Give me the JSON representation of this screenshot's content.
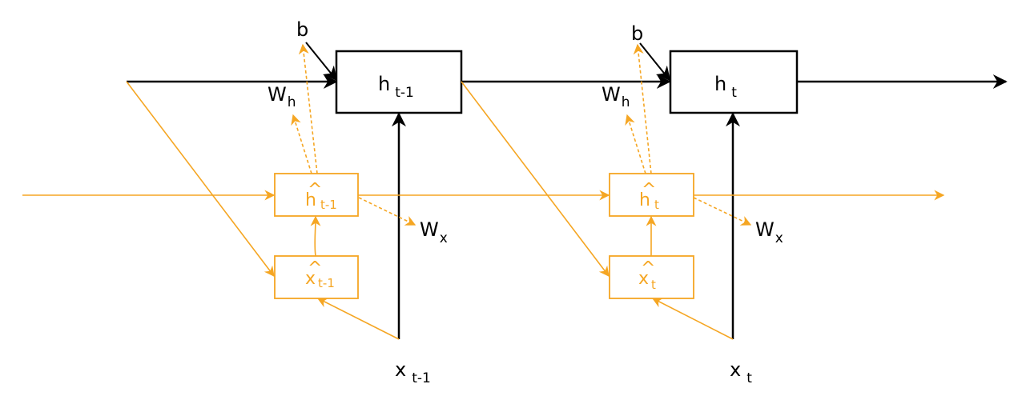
{
  "colors": {
    "black": "#000000",
    "orange": "#f5a623"
  },
  "nodes": {
    "h_prev": {
      "main": "h",
      "sub": "t-1"
    },
    "h_cur": {
      "main": "h",
      "sub": "t"
    },
    "hhat_prev": {
      "main": "h",
      "hat": "^",
      "sub": "t-1"
    },
    "hhat_cur": {
      "main": "h",
      "hat": "^",
      "sub": "t"
    },
    "xhat_prev": {
      "main": "x",
      "hat": "^",
      "sub": "t-1"
    },
    "xhat_cur": {
      "main": "x",
      "hat": "^",
      "sub": "t"
    }
  },
  "labels": {
    "b_1": "b",
    "b_2": "b",
    "wh_1": {
      "main": "W",
      "sub": "h"
    },
    "wh_2": {
      "main": "W",
      "sub": "h"
    },
    "wx_1": {
      "main": "W",
      "sub": "x"
    },
    "wx_2": {
      "main": "W",
      "sub": "x"
    },
    "x_prev": {
      "main": "x",
      "sub": "t-1"
    },
    "x_cur": {
      "main": "x",
      "sub": "t"
    }
  }
}
